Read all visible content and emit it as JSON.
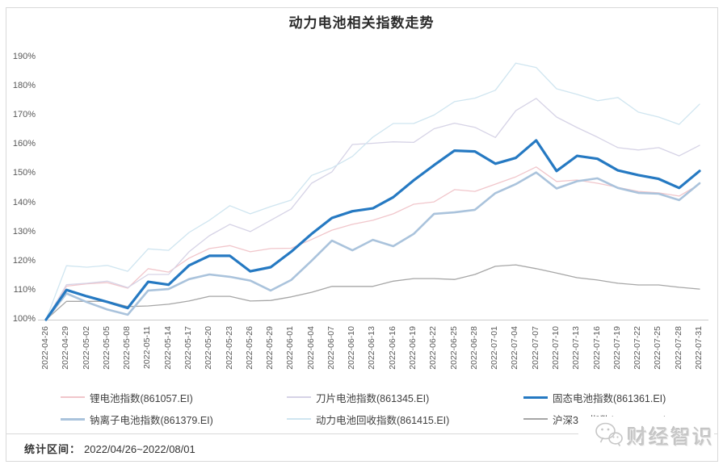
{
  "title": "动力电池相关指数走势",
  "footer": {
    "stats_label": "统计区间：",
    "stats_value": "2022/04/26~2022/08/01"
  },
  "watermark": {
    "icon": "wechat-icon",
    "text": "财经智识"
  },
  "colors": {
    "border": "#d9d9d9",
    "axis_line": "#cccccc",
    "tick_text": "#595959",
    "legend_text": "#404040",
    "watermark_gray": "#c9c9c9"
  },
  "chart_data": {
    "type": "line",
    "title": "动力电池相关指数走势",
    "xlabel": "",
    "ylabel": "",
    "ylim": [
      100,
      190
    ],
    "grid": false,
    "legend_position": "bottom",
    "y_ticks": [
      "100%",
      "110%",
      "120%",
      "130%",
      "140%",
      "150%",
      "160%",
      "170%",
      "180%",
      "190%"
    ],
    "x": [
      "2022-04-26",
      "2022-04-29",
      "2022-05-02",
      "2022-05-05",
      "2022-05-08",
      "2022-05-11",
      "2022-05-14",
      "2022-05-17",
      "2022-05-20",
      "2022-05-23",
      "2022-05-26",
      "2022-05-29",
      "2022-06-01",
      "2022-06-04",
      "2022-06-07",
      "2022-06-10",
      "2022-06-13",
      "2022-06-16",
      "2022-06-19",
      "2022-06-22",
      "2022-06-25",
      "2022-06-28",
      "2022-07-01",
      "2022-07-04",
      "2022-07-07",
      "2022-07-10",
      "2022-07-13",
      "2022-07-16",
      "2022-07-19",
      "2022-07-22",
      "2022-07-25",
      "2022-07-28",
      "2022-07-31"
    ],
    "series": [
      {
        "name": "锂电池指数(861057.EI)",
        "color": "#f1c6cb",
        "width": 1.3,
        "z": 1,
        "values": [
          100,
          111.5,
          112.3,
          112.7,
          110.8,
          117.5,
          116.3,
          121.1,
          124.4,
          125.4,
          123.3,
          124.4,
          124.5,
          127.5,
          130.7,
          132.7,
          134.1,
          136.3,
          139.6,
          140.4,
          144.6,
          144,
          146.5,
          149,
          152.4,
          147.4,
          147.9,
          146.8,
          145.4,
          144,
          143.5,
          142.4,
          146.5
        ]
      },
      {
        "name": "刀片电池指数(861345.EI)",
        "color": "#d6d3e6",
        "width": 1.3,
        "z": 2,
        "values": [
          100,
          112,
          112.5,
          113.2,
          111,
          115.5,
          115.5,
          123.3,
          128.8,
          132.7,
          130.2,
          134.1,
          138,
          146.8,
          150.7,
          160.1,
          160.5,
          161,
          160.8,
          165.5,
          167.4,
          166,
          162.5,
          171.7,
          175.9,
          169.5,
          165.9,
          162.6,
          159,
          158.2,
          159,
          156.2,
          159.8
        ]
      },
      {
        "name": "固态电池指数(861361.EI)",
        "color": "#2579c2",
        "width": 3.2,
        "z": 6,
        "values": [
          100,
          110.2,
          108,
          106.1,
          104,
          113,
          112,
          118.6,
          121.9,
          121.9,
          116.6,
          118,
          123.3,
          129.4,
          134.9,
          137.2,
          138.2,
          142,
          147.8,
          153,
          158,
          157.7,
          153.5,
          155.5,
          161.5,
          151,
          156.2,
          155.2,
          151.2,
          149.6,
          148.3,
          145.2,
          151
        ]
      },
      {
        "name": "钠离子电池指数(861379.EI)",
        "color": "#aac3dc",
        "width": 2.6,
        "z": 5,
        "values": [
          100,
          109,
          106,
          103.5,
          101.7,
          110,
          110.5,
          113.9,
          115.5,
          114.7,
          113.4,
          110,
          113.6,
          120.2,
          127.1,
          123.8,
          127.4,
          125.2,
          129.4,
          136.3,
          136.8,
          137.7,
          143.4,
          146.5,
          150.5,
          145,
          147.5,
          148.5,
          145.2,
          143.5,
          143.2,
          141,
          146.8
        ]
      },
      {
        "name": "动力电池回收指数(861415.EI)",
        "color": "#cfe5f0",
        "width": 1.3,
        "z": 3,
        "values": [
          100,
          118.5,
          118,
          118.6,
          116.6,
          124.3,
          123.8,
          129.9,
          134.1,
          139.1,
          136.3,
          138.8,
          141,
          149.5,
          152.1,
          156,
          162.6,
          167.3,
          167.3,
          170.2,
          174.8,
          176,
          178.7,
          188,
          186.5,
          179.2,
          177.3,
          175.1,
          176.2,
          171.2,
          169.5,
          167,
          173.9
        ]
      },
      {
        "name": "沪深300指数(000300.SH)",
        "color": "#a6a6a6",
        "width": 1.3,
        "z": 4,
        "values": [
          100,
          106.3,
          106.3,
          106.3,
          104.5,
          104.7,
          105.3,
          106.4,
          108,
          108,
          106.4,
          106.6,
          107.8,
          109.4,
          111.4,
          111.4,
          111.4,
          113.2,
          114.1,
          114.1,
          113.8,
          115.5,
          118.3,
          118.8,
          117.5,
          116,
          114.4,
          113.6,
          112.5,
          111.9,
          111.9,
          111.1,
          110.5
        ]
      }
    ]
  }
}
